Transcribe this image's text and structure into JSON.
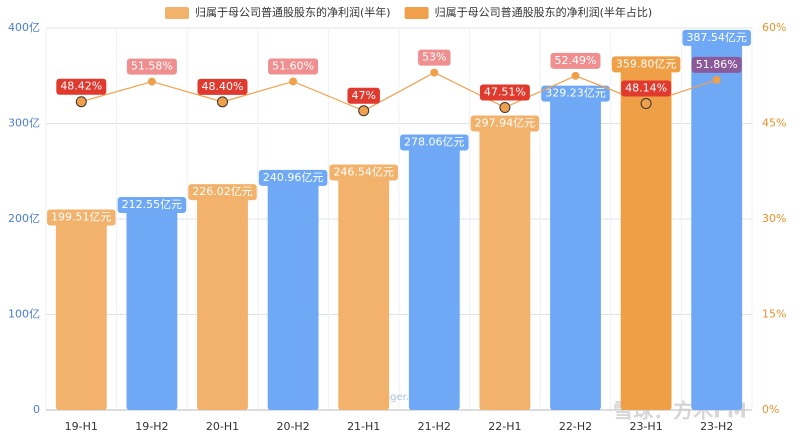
{
  "chart_data": {
    "type": "bar_line",
    "categories": [
      "19-H1",
      "19-H2",
      "20-H1",
      "20-H2",
      "21-H1",
      "21-H2",
      "22-H1",
      "22-H2",
      "23-H1",
      "23-H2"
    ],
    "series": [
      {
        "name": "归属于母公司普通股股东的净利润(半年)",
        "color": "#f2b26b",
        "type": "bar",
        "colors": [
          "#f2b26b",
          "#6fa8f5",
          "#f2b26b",
          "#6fa8f5",
          "#f2b26b",
          "#6fa8f5",
          "#f2b26b",
          "#6fa8f5",
          "#ef9f45",
          "#6fa8f5"
        ],
        "values": [
          199.51,
          212.55,
          226.02,
          240.96,
          246.54,
          278.06,
          297.94,
          329.23,
          359.8,
          387.54
        ],
        "value_labels": [
          "199.51亿元",
          "212.55亿元",
          "226.02亿元",
          "240.96亿元",
          "246.54亿元",
          "278.06亿元",
          "297.94亿元",
          "329.23亿元",
          "359.80亿元",
          "387.54亿元"
        ]
      },
      {
        "name": "归属于母公司普通股股东的净利润(半年占比)",
        "color": "#f0a04b",
        "type": "line",
        "axis": "y2",
        "label_colors": [
          "#e0392e",
          "#f08f8f",
          "#e0392e",
          "#f08f8f",
          "#e0392e",
          "#f08f8f",
          "#e0392e",
          "#f08f8f",
          "#e0392e",
          "#8a5a9a"
        ],
        "values": [
          48.42,
          51.58,
          48.4,
          51.6,
          47,
          53,
          47.51,
          52.49,
          48.14,
          51.86
        ],
        "value_labels": [
          "48.42%",
          "51.58%",
          "48.40%",
          "51.60%",
          "47%",
          "53%",
          "47.51%",
          "52.49%",
          "48.14%",
          "51.86%"
        ]
      }
    ],
    "ylim": [
      0,
      400
    ],
    "yticks": [
      0,
      {
        "value": 100,
        "label": "100亿"
      },
      {
        "value": 200,
        "label": "200亿"
      },
      {
        "value": 300,
        "label": "300亿"
      },
      {
        "value": 400,
        "label": "400亿"
      }
    ],
    "y2lim": [
      0,
      60
    ],
    "y2ticks": [
      {
        "value": 0,
        "label": "0%"
      },
      {
        "value": 15,
        "label": "15%"
      },
      {
        "value": 30,
        "label": "30%"
      },
      {
        "value": 45,
        "label": "45%"
      },
      {
        "value": 60,
        "label": "60%"
      }
    ],
    "grid": true,
    "legend": "top",
    "watermarks": [
      "lixinger.com",
      "雪球：方木FM"
    ]
  }
}
